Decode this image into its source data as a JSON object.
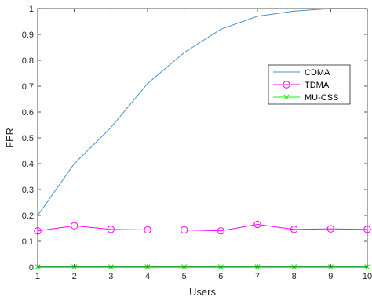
{
  "chart_data": {
    "type": "line",
    "title": "",
    "xlabel": "Users",
    "ylabel": "FER",
    "xlim": [
      1,
      10
    ],
    "ylim": [
      0,
      1
    ],
    "x": [
      1,
      2,
      3,
      4,
      5,
      6,
      7,
      8,
      9,
      10
    ],
    "xticks": [
      "1",
      "2",
      "3",
      "4",
      "5",
      "6",
      "7",
      "8",
      "9",
      "10"
    ],
    "yticks": [
      "0",
      "0.1",
      "0.2",
      "0.3",
      "0.4",
      "0.5",
      "0.6",
      "0.7",
      "0.8",
      "0.9",
      "1"
    ],
    "grid": false,
    "legend_position": "right",
    "series": [
      {
        "name": "CDMA",
        "color": "#4a8fc9",
        "marker": "none",
        "values": [
          0.2,
          0.4,
          0.54,
          0.71,
          0.83,
          0.92,
          0.97,
          0.99,
          1.0,
          1.0
        ]
      },
      {
        "name": "TDMA",
        "color": "#ff00ff",
        "marker": "circle",
        "values": [
          0.14,
          0.16,
          0.146,
          0.144,
          0.144,
          0.14,
          0.165,
          0.146,
          0.148,
          0.146
        ]
      },
      {
        "name": "MU-CSS",
        "color": "#00ff00",
        "marker": "x",
        "values": [
          0.001,
          0.001,
          0.001,
          0.001,
          0.001,
          0.001,
          0.001,
          0.001,
          0.001,
          0.001
        ]
      }
    ]
  }
}
